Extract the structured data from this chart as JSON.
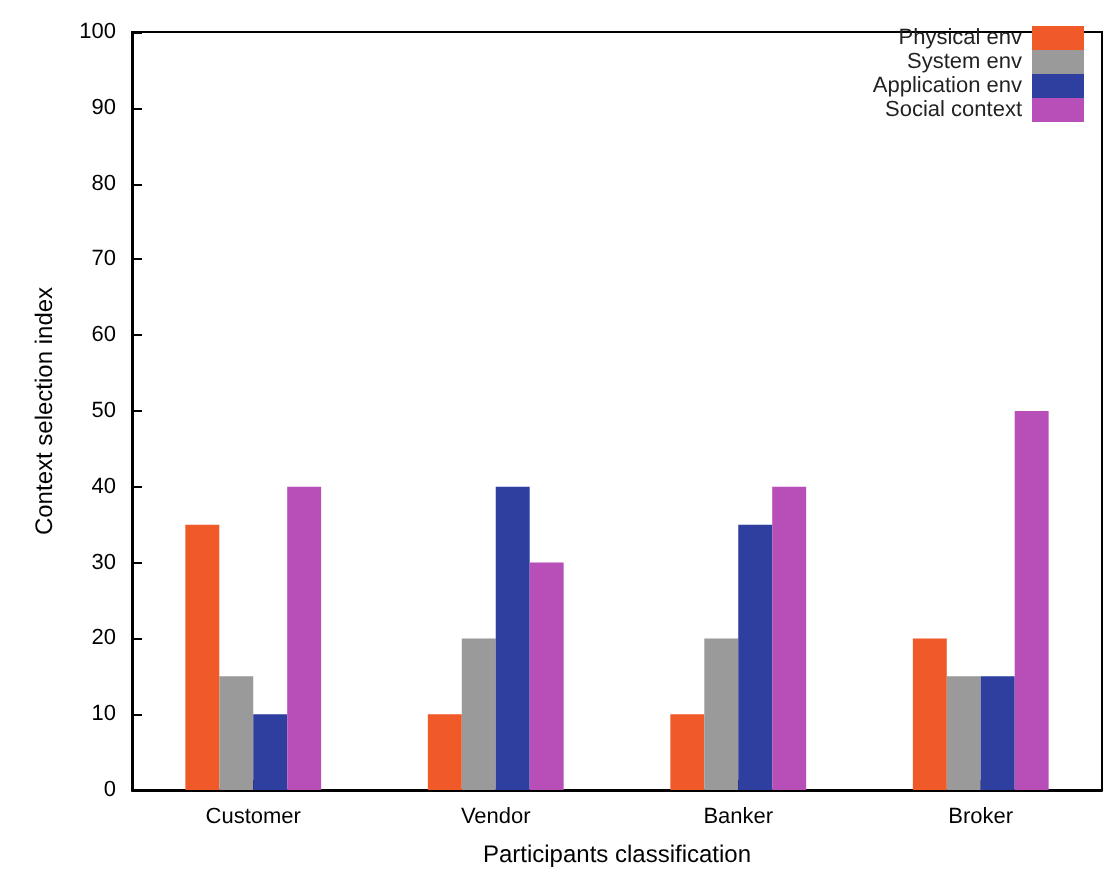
{
  "chart_data": {
    "type": "bar",
    "xlabel": "Participants classification",
    "ylabel": "Context selection index",
    "categories": [
      "Customer",
      "Vendor",
      "Banker",
      "Broker"
    ],
    "series": [
      {
        "name": "Physical env",
        "color": "#f05a28",
        "values": [
          35,
          10,
          10,
          20
        ]
      },
      {
        "name": "System env",
        "color": "#9a9a9a",
        "values": [
          15,
          20,
          20,
          15
        ]
      },
      {
        "name": "Application env",
        "color": "#2e3fa0",
        "values": [
          10,
          40,
          35,
          15
        ]
      },
      {
        "name": "Social context",
        "color": "#b84fb8",
        "values": [
          40,
          30,
          40,
          50
        ]
      }
    ],
    "ylim": [
      0,
      100
    ],
    "yticks": [
      0,
      10,
      20,
      30,
      40,
      50,
      60,
      70,
      80,
      90,
      100
    ],
    "grid": false,
    "legend": "top right"
  }
}
